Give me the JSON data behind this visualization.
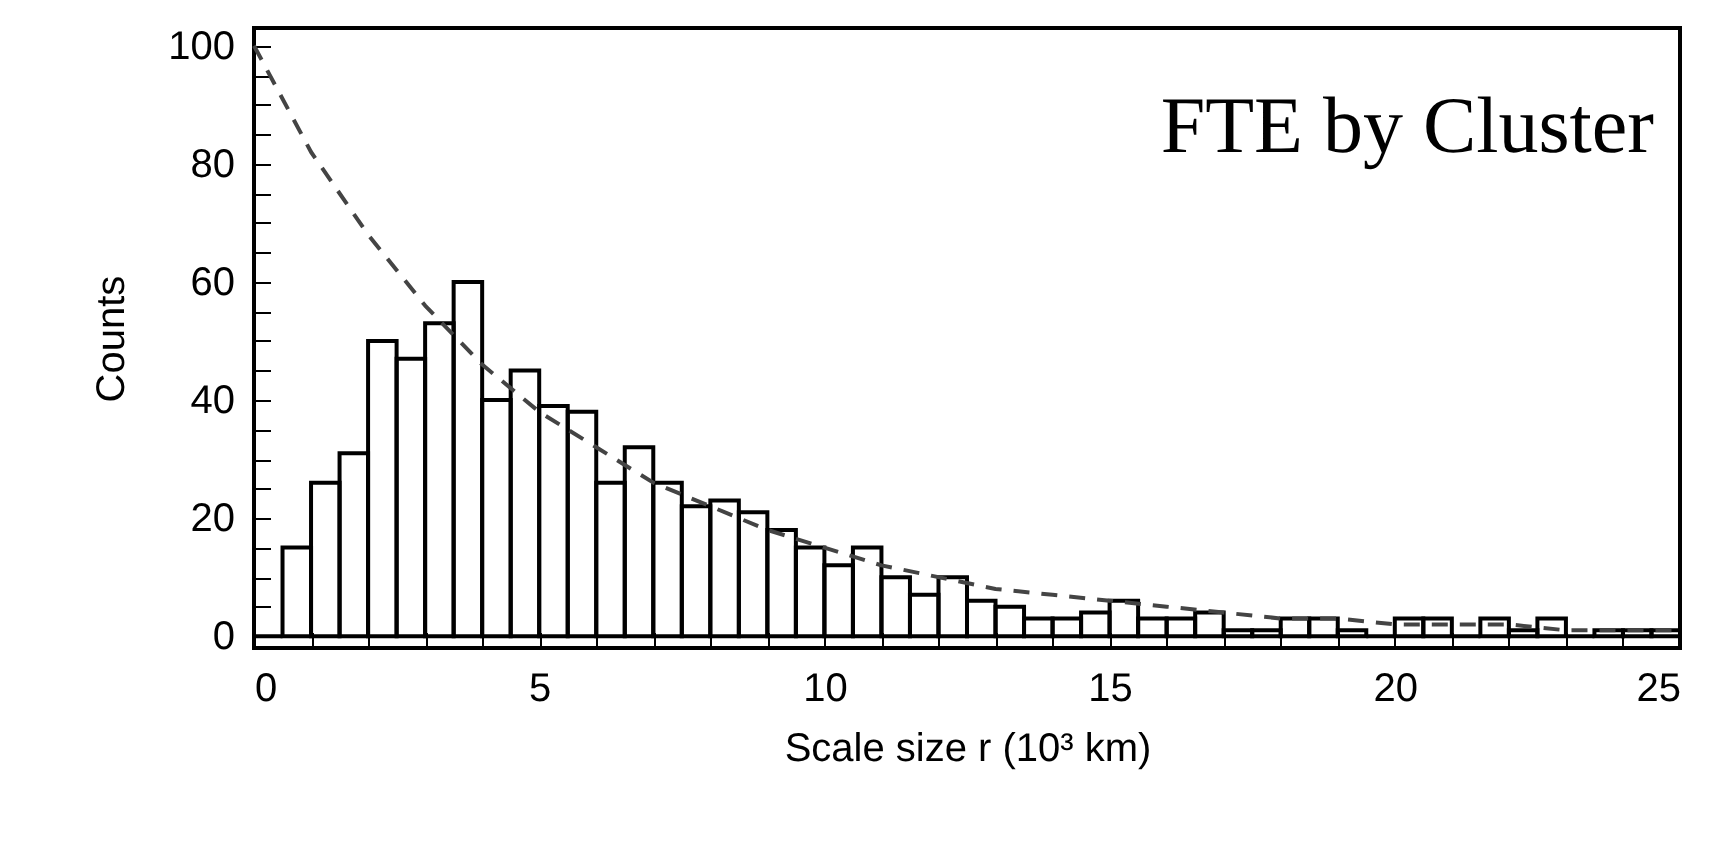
{
  "chart_data": {
    "type": "histogram",
    "xlabel": "Scale size r (10³ km)",
    "ylabel": "Counts",
    "annotations": [
      "FTE by Cluster"
    ],
    "bins": [
      0,
      0.5,
      1,
      1.5,
      2,
      2.5,
      3,
      3.5,
      4,
      4.5,
      5,
      5.5,
      6,
      6.5,
      7,
      7.5,
      8,
      8.5,
      9,
      9.5,
      10,
      10.5,
      11,
      11.5,
      12,
      12.5,
      13,
      13.5,
      14,
      14.5,
      15,
      15.5,
      16,
      16.5,
      17,
      17.5,
      18,
      18.5,
      19,
      19.5,
      20,
      20.5,
      21,
      21.5,
      22,
      22.5,
      23,
      23.5,
      24,
      24.5,
      25
    ],
    "series": [
      {
        "color": "#000000",
        "values": [
          0,
          15,
          26,
          31,
          50,
          47,
          53,
          60,
          40,
          45,
          39,
          38,
          26,
          32,
          26,
          22,
          23,
          21,
          18,
          15,
          12,
          15,
          10,
          7,
          10,
          6,
          5,
          3,
          3,
          4,
          6,
          3,
          3,
          4,
          1,
          1,
          3,
          3,
          1,
          0,
          3,
          3,
          0,
          3,
          1,
          3,
          0,
          1,
          1,
          1
        ]
      },
      {
        "type": "line",
        "color": "#444444",
        "line_style": "dashed",
        "x": [
          0,
          1,
          2,
          3,
          4,
          5,
          6,
          7,
          8,
          9,
          10,
          11,
          12,
          13,
          14,
          15,
          16,
          17,
          18,
          19,
          20,
          21,
          22,
          23,
          24,
          25
        ],
        "values": [
          100,
          82,
          68,
          56,
          46,
          38,
          32,
          26,
          22,
          18,
          15,
          12,
          10,
          8,
          7,
          6,
          5,
          4,
          3,
          3,
          2,
          2,
          2,
          1,
          1,
          1
        ]
      }
    ],
    "xlim": [
      0,
      25
    ],
    "xticks": [
      0,
      {
        "value": 1,
        "label": null
      },
      {
        "value": 2,
        "label": null
      },
      {
        "value": 3,
        "label": null
      },
      {
        "value": 4,
        "label": null
      },
      5,
      {
        "value": 6,
        "label": null
      },
      {
        "value": 7,
        "label": null
      },
      {
        "value": 8,
        "label": null
      },
      {
        "value": 9,
        "label": null
      },
      10,
      {
        "value": 11,
        "label": null
      },
      {
        "value": 12,
        "label": null
      },
      {
        "value": 13,
        "label": null
      },
      {
        "value": 14,
        "label": null
      },
      15,
      {
        "value": 16,
        "label": null
      },
      {
        "value": 17,
        "label": null
      },
      {
        "value": 18,
        "label": null
      },
      {
        "value": 19,
        "label": null
      },
      20,
      {
        "value": 21,
        "label": null
      },
      {
        "value": 22,
        "label": null
      },
      {
        "value": 23,
        "label": null
      },
      {
        "value": 24,
        "label": null
      },
      25
    ],
    "ylim": [
      -2,
      103
    ],
    "yticks": [
      0,
      {
        "value": 5,
        "label": null
      },
      {
        "value": 10,
        "label": null
      },
      {
        "value": 15,
        "label": null
      },
      20,
      {
        "value": 25,
        "label": null
      },
      {
        "value": 30,
        "label": null
      },
      {
        "value": 35,
        "label": null
      },
      40,
      {
        "value": 45,
        "label": null
      },
      {
        "value": 50,
        "label": null
      },
      {
        "value": 55,
        "label": null
      },
      60,
      {
        "value": 65,
        "label": null
      },
      {
        "value": 70,
        "label": null
      },
      {
        "value": 75,
        "label": null
      },
      80,
      {
        "value": 85,
        "label": null
      },
      {
        "value": 90,
        "label": null
      },
      {
        "value": 95,
        "label": null
      },
      100
    ],
    "grid": false
  }
}
